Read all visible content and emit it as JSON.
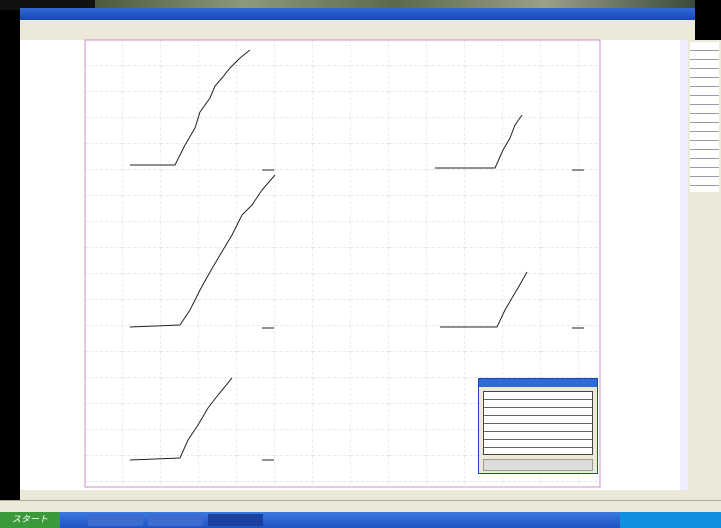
{
  "taskbar": {
    "start": "スタート"
  }
}
